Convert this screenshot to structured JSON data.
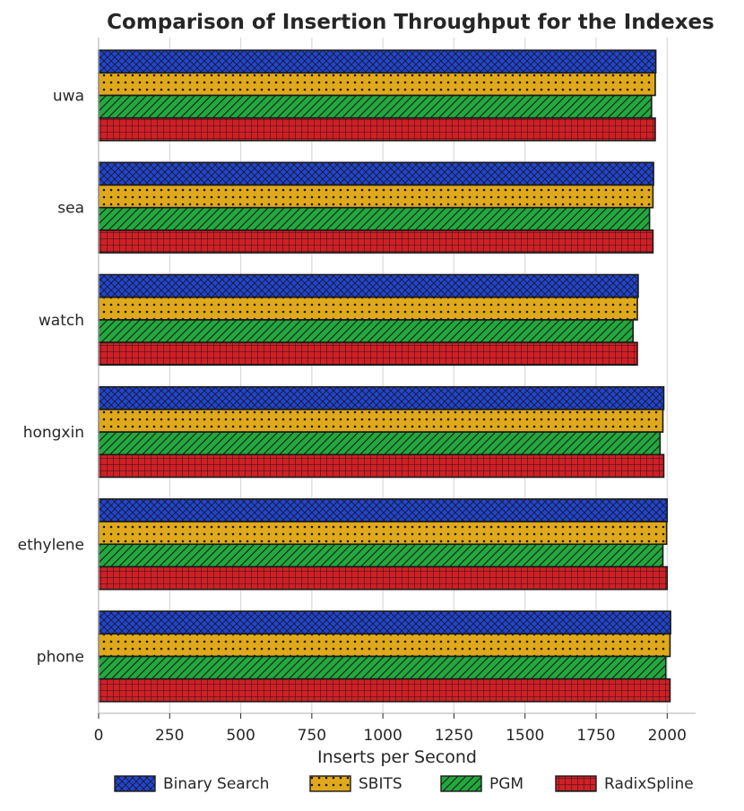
{
  "chart_data": {
    "type": "bar",
    "orientation": "horizontal",
    "title": "Comparison of Insertion Throughput for the Indexes",
    "xlabel": "Inserts per Second",
    "ylabel": "",
    "categories": [
      "uwa",
      "sea",
      "watch",
      "hongxin",
      "ethylene",
      "phone"
    ],
    "xlim": [
      0,
      2100
    ],
    "xticks": [
      "0",
      "250",
      "500",
      "750",
      "1000",
      "1250",
      "1500",
      "1750",
      "2000"
    ],
    "grid": "vertical",
    "legend": "bottom-center",
    "series": [
      {
        "name": "Binary Search",
        "color": "#2044d4",
        "hatch": "crosshatch",
        "values": [
          1960,
          1952,
          1898,
          1988,
          2000,
          2012
        ]
      },
      {
        "name": "SBITS",
        "color": "#e0a91b",
        "hatch": "dots",
        "values": [
          1958,
          1950,
          1895,
          1985,
          1998,
          2010
        ]
      },
      {
        "name": "PGM",
        "color": "#22a83d",
        "hatch": "diagonal",
        "values": [
          1945,
          1938,
          1880,
          1975,
          1985,
          1995
        ]
      },
      {
        "name": "RadixSpline",
        "color": "#d11f25",
        "hatch": "grid",
        "values": [
          1958,
          1950,
          1895,
          1988,
          2000,
          2010
        ]
      }
    ]
  }
}
